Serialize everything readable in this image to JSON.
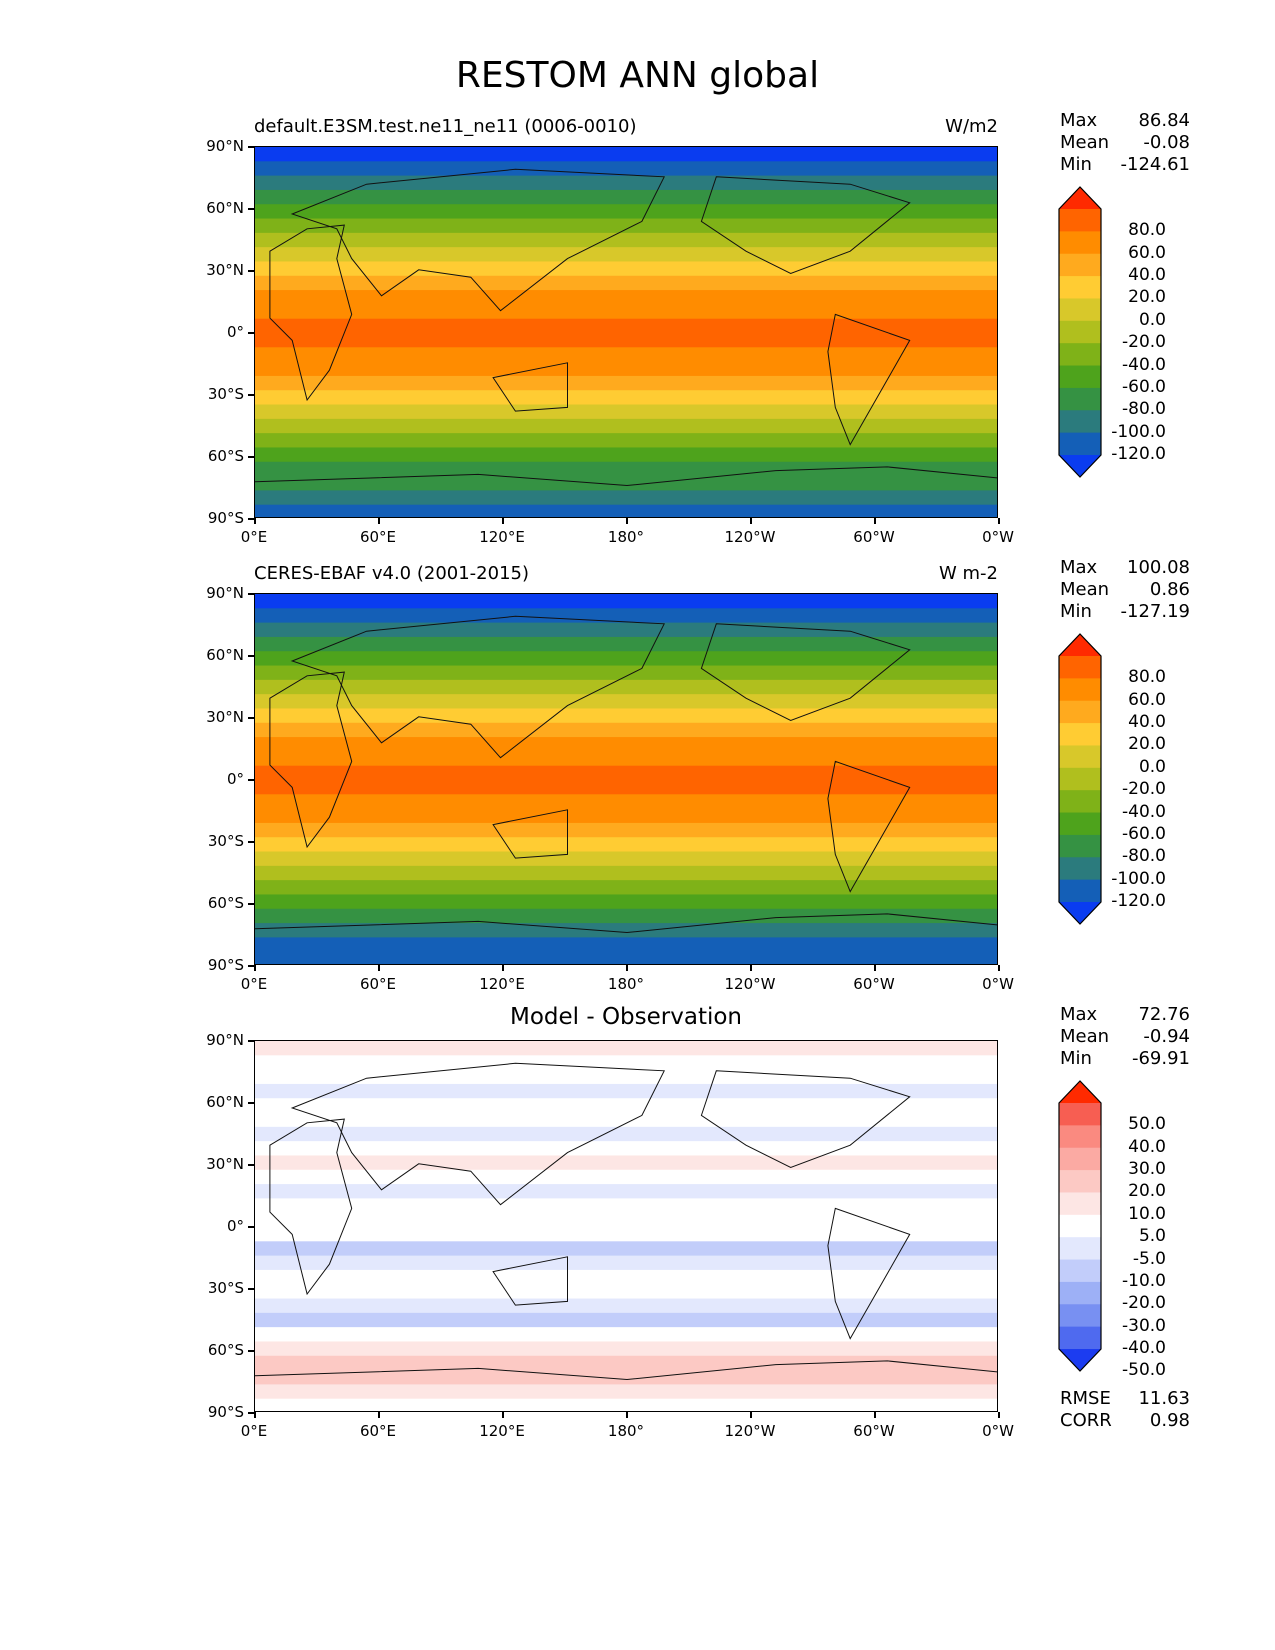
{
  "title": "RESTOM ANN global",
  "lat_labels": [
    "90°N",
    "60°N",
    "30°N",
    "0°",
    "30°S",
    "60°S",
    "90°S"
  ],
  "lon_labels": [
    "0°E",
    "60°E",
    "120°E",
    "180°",
    "120°W",
    "60°W",
    "0°W"
  ],
  "panels": [
    {
      "left_title": "default.E3SM.test.ne11_ne11 (0006-0010)",
      "right_title": "W/m2",
      "center_title": "",
      "stats": [
        {
          "label": "Max",
          "value": "86.84"
        },
        {
          "label": "Mean",
          "value": "-0.08"
        },
        {
          "label": "Min",
          "value": "-124.61"
        }
      ],
      "colorbar": {
        "levels": [
          "80.0",
          "60.0",
          "40.0",
          "20.0",
          "0.0",
          "-20.0",
          "-40.0",
          "-60.0",
          "-80.0",
          "-100.0",
          "-120.0"
        ],
        "colors": [
          "#ff2a00",
          "#ff6400",
          "#ff8c00",
          "#ffaa1e",
          "#ffcc33",
          "#d8c82a",
          "#b0bf1e",
          "#7fb218",
          "#4ea31c",
          "#359243",
          "#2b7b7d",
          "#145fb7",
          "#0a3cf0"
        ]
      },
      "footer_stats": []
    },
    {
      "left_title": "CERES-EBAF v4.0 (2001-2015)",
      "right_title": "W m-2",
      "center_title": "",
      "stats": [
        {
          "label": "Max",
          "value": "100.08"
        },
        {
          "label": "Mean",
          "value": "0.86"
        },
        {
          "label": "Min",
          "value": "-127.19"
        }
      ],
      "colorbar": {
        "levels": [
          "80.0",
          "60.0",
          "40.0",
          "20.0",
          "0.0",
          "-20.0",
          "-40.0",
          "-60.0",
          "-80.0",
          "-100.0",
          "-120.0"
        ],
        "colors": [
          "#ff2a00",
          "#ff6400",
          "#ff8c00",
          "#ffaa1e",
          "#ffcc33",
          "#d8c82a",
          "#b0bf1e",
          "#7fb218",
          "#4ea31c",
          "#359243",
          "#2b7b7d",
          "#145fb7",
          "#0a3cf0"
        ]
      },
      "footer_stats": []
    },
    {
      "left_title": "",
      "right_title": "",
      "center_title": "Model - Observation",
      "stats": [
        {
          "label": "Max",
          "value": "72.76"
        },
        {
          "label": "Mean",
          "value": "-0.94"
        },
        {
          "label": "Min",
          "value": "-69.91"
        }
      ],
      "colorbar": {
        "levels": [
          "50.0",
          "40.0",
          "30.0",
          "20.0",
          "10.0",
          "5.0",
          "-5.0",
          "-10.0",
          "-20.0",
          "-30.0",
          "-40.0",
          "-50.0"
        ],
        "colors": [
          "#ff2a00",
          "#f75e52",
          "#fa8a80",
          "#fbaaa3",
          "#fcc9c4",
          "#fde6e4",
          "#ffffff",
          "#e3e8fd",
          "#c2cdfa",
          "#9db0f6",
          "#7890f2",
          "#4f6aef",
          "#1c3cf0"
        ]
      },
      "footer_stats": [
        {
          "label": "RMSE",
          "value": "11.63"
        },
        {
          "label": "CORR",
          "value": "0.98"
        }
      ]
    }
  ]
}
